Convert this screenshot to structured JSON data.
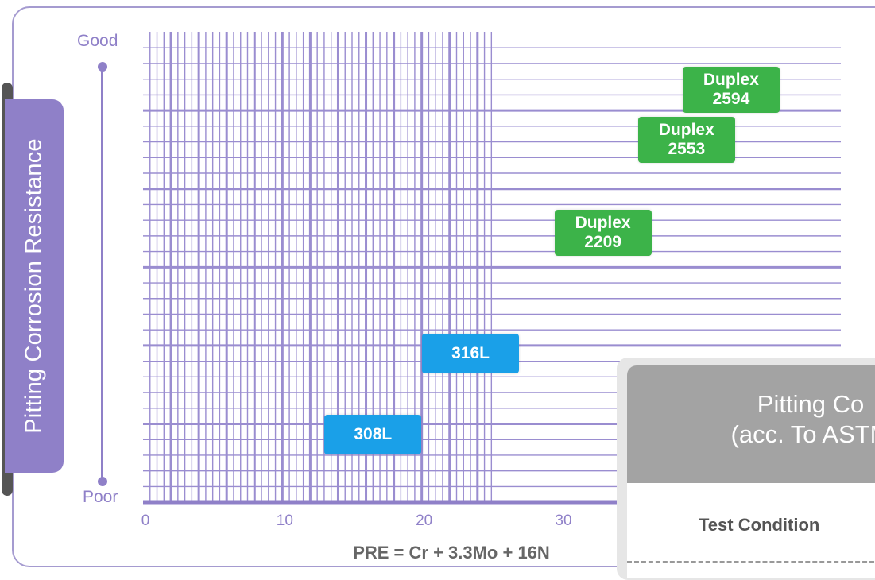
{
  "chart_data": {
    "type": "scatter",
    "ytitle": "Pitting Corrosion Resistance",
    "scale": {
      "top_label": "Good",
      "bottom_label": "Poor"
    },
    "xlabel": "PRE = Cr + 3.3Mo + 16N",
    "xlim": [
      0,
      50
    ],
    "ylim": [
      0,
      50
    ],
    "x_ticks": [
      "0",
      "10",
      "20",
      "30"
    ],
    "points": [
      {
        "name": "308L",
        "line1": "308L",
        "line2": "",
        "x": 16.5,
        "y": 4.8,
        "color": "#1aa0e8"
      },
      {
        "name": "316L",
        "line1": "316L",
        "line2": "",
        "x": 23.5,
        "y": 10.6,
        "color": "#1aa0e8"
      },
      {
        "name": "Duplex 2209",
        "line1": "Duplex",
        "line2": "2209",
        "x": 33,
        "y": 19.2,
        "color": "#3cb349"
      },
      {
        "name": "Duplex 2553",
        "line1": "Duplex",
        "line2": "2553",
        "x": 39,
        "y": 25.8,
        "color": "#3cb349"
      },
      {
        "name": "Duplex 2594",
        "line1": "Duplex",
        "line2": "2594",
        "x": 42.2,
        "y": 29.4,
        "color": "#3cb349"
      }
    ],
    "grid": true
  },
  "info_card": {
    "title_line1": "Pitting Co",
    "title_line2": "(acc. To ASTM",
    "row_label": "Test Condition"
  },
  "colors": {
    "grid": "#9a8dd0",
    "accent": "#8f80c8",
    "duplex": "#3cb349",
    "austenitic": "#1aa0e8"
  }
}
